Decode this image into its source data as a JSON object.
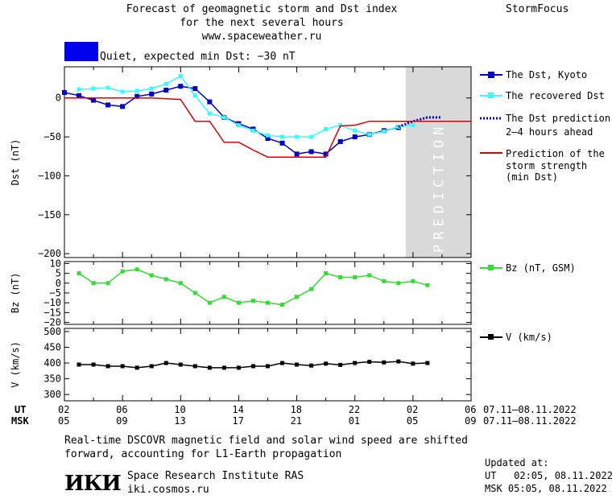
{
  "header": {
    "title_line1": "Forecast of geomagnetic storm and Dst index",
    "title_line2": "for the next several hours",
    "site": "www.spaceweather.ru",
    "brand": "StormFocus",
    "status_text": "Quiet, expected min Dst: −30 nT",
    "status_color": "#0000ee"
  },
  "legend": {
    "dst_kyoto": "The Dst, Kyoto",
    "dst_recovered": "The recovered Dst",
    "dst_prediction_l1": "The Dst prediction",
    "dst_prediction_l2": "2–4 hours ahead",
    "storm_l1": "Prediction of the",
    "storm_l2": "storm strength",
    "storm_l3": "(min Dst)",
    "bz": "Bz (nT, GSM)",
    "v": "V (km/s)"
  },
  "colors": {
    "kyoto": "#0000cc",
    "recovered": "#33ffff",
    "prediction": "#0000cc",
    "storm": "#dd0000",
    "bz": "#33dd33",
    "v": "#000000",
    "prediction_band": "#d9d9d9"
  },
  "time_axis": {
    "ut_label": "UT",
    "msk_label": "MSK",
    "ut_ticks": [
      "02",
      "06",
      "10",
      "14",
      "18",
      "22",
      "02",
      "06"
    ],
    "msk_ticks": [
      "05",
      "09",
      "13",
      "17",
      "21",
      "01",
      "05",
      "09"
    ],
    "ut_range": "07.11–08.11.2022",
    "msk_range": "07.11–08.11.2022"
  },
  "footer": {
    "note_l1": "Real-time DSCOVR magnetic field and solar wind speed are shifted",
    "note_l2": "forward, accounting for L1-Earth propagation",
    "org": "Space Research Institute RAS",
    "org_url": "iki.cosmos.ru",
    "logo_text": "ИКИ",
    "updated_label": "Updated at:",
    "updated_ut": "UT   02:05, 08.11.2022",
    "updated_msk": "MSK 05:05, 08.11.2022"
  },
  "chart_data": [
    {
      "type": "line",
      "ylabel": "Dst (nT)",
      "ylim": [
        -205,
        40
      ],
      "yticks": [
        0,
        -50,
        -100,
        -150,
        -200
      ],
      "xlim": [
        0,
        28
      ],
      "prediction_label": "PREDICTION",
      "prediction_start": 23.5,
      "series": [
        {
          "name": "The Dst, Kyoto",
          "x": [
            0,
            1,
            2,
            3,
            4,
            5,
            6,
            7,
            8,
            9,
            10,
            11,
            12,
            13,
            14,
            15,
            16,
            17,
            18,
            19,
            20,
            21,
            22,
            23
          ],
          "y": [
            7,
            3,
            -3,
            -9,
            -11,
            2,
            5,
            10,
            15,
            12,
            -5,
            -25,
            -33,
            -40,
            -52,
            -58,
            -72,
            -69,
            -72,
            -56,
            -50,
            -47,
            -42,
            -38
          ]
        },
        {
          "name": "The recovered Dst",
          "x": [
            1,
            2,
            3,
            4,
            5,
            6,
            7,
            8,
            9,
            10,
            11,
            12,
            13,
            14,
            15,
            16,
            17,
            18,
            19,
            20,
            21,
            22,
            23,
            24
          ],
          "y": [
            11,
            12,
            13,
            8,
            9,
            12,
            18,
            28,
            3,
            -20,
            -25,
            -35,
            -42,
            -48,
            -50,
            -50,
            -50,
            -40,
            -35,
            -42,
            -47,
            -43,
            -37,
            -35
          ]
        },
        {
          "name": "The Dst prediction 2–4 hours ahead",
          "x": [
            23,
            24,
            25,
            26
          ],
          "y": [
            -37,
            -30,
            -25,
            -25
          ]
        },
        {
          "name": "Prediction of the storm strength (min Dst)",
          "x": [
            0,
            6,
            8,
            9,
            10,
            11,
            12,
            13,
            14,
            15,
            16,
            17,
            18,
            19,
            20,
            21,
            22,
            23,
            24,
            28
          ],
          "y": [
            0,
            0,
            -2,
            -30,
            -30,
            -57,
            -57,
            -67,
            -76,
            -76,
            -76,
            -76,
            -76,
            -36,
            -35,
            -30,
            -30,
            -30,
            -30,
            -30
          ]
        }
      ]
    },
    {
      "type": "line",
      "ylabel": "Bz (nT)",
      "ylim": [
        -21,
        11
      ],
      "yticks": [
        10,
        5,
        0,
        -5,
        -10,
        -15,
        -20
      ],
      "xlim": [
        0,
        28
      ],
      "series": [
        {
          "name": "Bz (nT, GSM)",
          "x": [
            1,
            2,
            3,
            4,
            5,
            6,
            7,
            8,
            9,
            10,
            11,
            12,
            13,
            14,
            15,
            16,
            17,
            18,
            19,
            20,
            21,
            22,
            23,
            24,
            25
          ],
          "y": [
            5,
            0,
            0,
            6,
            7,
            4,
            2,
            0,
            -5,
            -10,
            -7,
            -10,
            -9,
            -10,
            -11,
            -7,
            -3,
            5,
            3,
            3,
            4,
            1,
            0,
            1,
            -1
          ]
        }
      ]
    },
    {
      "type": "line",
      "ylabel": "V (km/s)",
      "ylim": [
        280,
        510
      ],
      "yticks": [
        500,
        450,
        400,
        350,
        300
      ],
      "xlim": [
        0,
        28
      ],
      "series": [
        {
          "name": "V (km/s)",
          "x": [
            1,
            2,
            3,
            4,
            5,
            6,
            7,
            8,
            9,
            10,
            11,
            12,
            13,
            14,
            15,
            16,
            17,
            18,
            19,
            20,
            21,
            22,
            23,
            24,
            25
          ],
          "y": [
            395,
            395,
            390,
            390,
            385,
            390,
            400,
            395,
            390,
            385,
            385,
            385,
            390,
            390,
            400,
            395,
            392,
            398,
            394,
            400,
            404,
            402,
            405,
            398,
            400
          ]
        }
      ]
    }
  ]
}
